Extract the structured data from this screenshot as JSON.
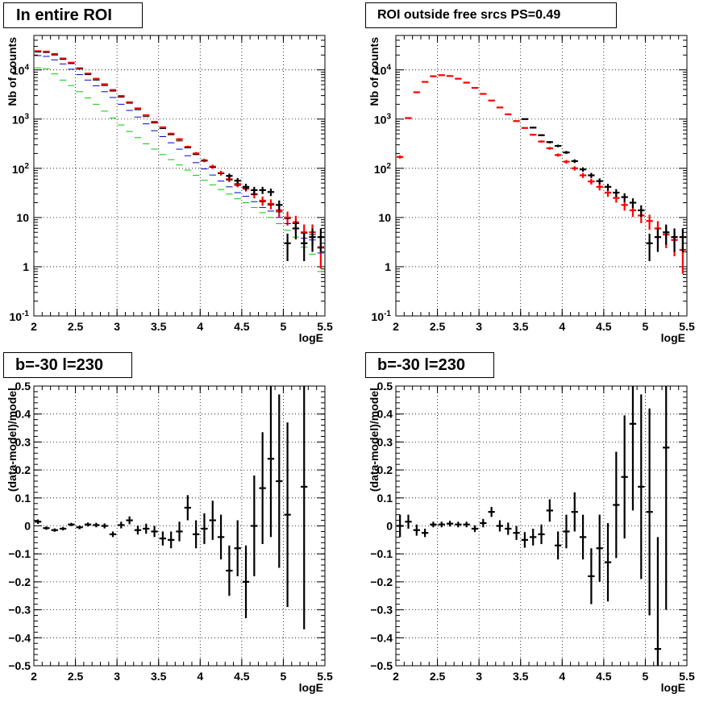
{
  "colors": {
    "data": "#000000",
    "model": "#ff0000",
    "component_blue": "#0000cc",
    "component_green": "#00cc00"
  },
  "panels": {
    "top_left": {
      "title": "In entire ROI"
    },
    "top_right": {
      "title": "ROI outside free srcs PS=0.49"
    },
    "bottom_left": {
      "title": "b=-30 l=230"
    },
    "bottom_right": {
      "title": "b=-30 l=230"
    }
  },
  "chart_data": [
    {
      "type": "scatter",
      "title": "In entire ROI",
      "xlabel": "logE",
      "ylabel": "Nb of counts",
      "xlim": [
        2,
        5.5
      ],
      "ylim": [
        0.1,
        50000
      ],
      "yscale": "log",
      "grid": true,
      "x_ticks": [
        "2",
        "2.5",
        "3",
        "3.5",
        "4",
        "4.5",
        "5",
        "5.5"
      ],
      "y_ticks": [
        "10^-1",
        "1",
        "10",
        "10^2",
        "10^3",
        "10^4"
      ],
      "x": [
        2.05,
        2.15,
        2.25,
        2.35,
        2.45,
        2.55,
        2.65,
        2.75,
        2.85,
        2.95,
        3.05,
        3.15,
        3.25,
        3.35,
        3.45,
        3.55,
        3.65,
        3.75,
        3.85,
        3.95,
        4.05,
        4.15,
        4.25,
        4.35,
        4.45,
        4.55,
        4.65,
        4.75,
        4.85,
        4.95,
        5.05,
        5.15,
        5.25,
        5.35,
        5.45
      ],
      "series": [
        {
          "values": [
            24000,
            23500,
            21000,
            17000,
            14000,
            10800,
            8400,
            6600,
            5100,
            3900,
            2950,
            2200,
            1650,
            1200,
            880,
            680,
            505,
            390,
            272,
            200,
            145,
            108,
            80,
            60,
            48,
            40,
            30,
            22,
            19,
            14,
            10,
            8,
            5,
            5,
            2.5
          ]
        },
        {
          "values": [
            23000,
            22500,
            20000,
            16300,
            13400,
            10400,
            8000,
            6200,
            4800,
            3700,
            2800,
            2100,
            1550,
            1120,
            830,
            640,
            480,
            360,
            260,
            190,
            140,
            105,
            78,
            58,
            45,
            38,
            29,
            21,
            18,
            13,
            9.5,
            7.5,
            4.8,
            4.5,
            2.4
          ]
        },
        {
          "values": [
            19500,
            18800,
            16000,
            13200,
            10300,
            8000,
            6200,
            4750,
            3600,
            2750,
            2000,
            1500,
            1100,
            800,
            580,
            440,
            330,
            245,
            180,
            130,
            97,
            73,
            55,
            42,
            32,
            27,
            21,
            16,
            13.5,
            10,
            7.5,
            6,
            3.8,
            3.5,
            1.9
          ]
        },
        {
          "values": [
            11000,
            10500,
            8300,
            6200,
            4800,
            3600,
            2700,
            2000,
            1450,
            1050,
            760,
            560,
            420,
            315,
            245,
            190,
            150,
            117,
            92,
            72,
            57,
            46,
            37,
            30,
            24,
            20,
            16,
            12.5,
            10,
            7.5,
            5.5,
            4,
            2.5,
            1.8,
            0.8
          ]
        },
        {
          "values": [
            null,
            null,
            null,
            null,
            null,
            null,
            null,
            null,
            null,
            null,
            null,
            null,
            null,
            null,
            null,
            null,
            null,
            null,
            null,
            null,
            null,
            null,
            null,
            70,
            56,
            42,
            36,
            36,
            33,
            18,
            3,
            6,
            3,
            4,
            4
          ],
          "errors": [
            null,
            null,
            null,
            null,
            null,
            null,
            null,
            null,
            null,
            null,
            null,
            null,
            null,
            null,
            null,
            null,
            null,
            null,
            null,
            null,
            null,
            null,
            null,
            8,
            7.5,
            6.5,
            6,
            6,
            5.7,
            4.2,
            1.7,
            2.4,
            1.7,
            2,
            2
          ]
        }
      ]
    },
    {
      "type": "scatter",
      "title": "ROI outside free srcs PS=0.49",
      "xlabel": "logE",
      "ylabel": "Nb of counts",
      "xlim": [
        2,
        5.5
      ],
      "ylim": [
        0.1,
        50000
      ],
      "yscale": "log",
      "grid": true,
      "x_ticks": [
        "2",
        "2.5",
        "3",
        "3.5",
        "4",
        "4.5",
        "5",
        "5.5"
      ],
      "y_ticks": [
        "10^-1",
        "1",
        "10",
        "10^2",
        "10^3",
        "10^4"
      ],
      "x": [
        2.05,
        2.15,
        2.25,
        2.35,
        2.45,
        2.55,
        2.65,
        2.75,
        2.85,
        2.95,
        3.05,
        3.15,
        3.25,
        3.35,
        3.45,
        3.55,
        3.65,
        3.75,
        3.85,
        3.95,
        4.05,
        4.15,
        4.25,
        4.35,
        4.45,
        4.55,
        4.65,
        4.75,
        4.85,
        4.95,
        5.05,
        5.15,
        5.25,
        5.35,
        5.45
      ],
      "series": [
        {
          "values": [
            170,
            1050,
            3500,
            5700,
            7400,
            7800,
            7500,
            6600,
            5500,
            4300,
            3250,
            2380,
            1720,
            1250,
            910,
            660,
            480,
            350,
            255,
            186,
            136,
            100,
            72,
            54,
            42,
            32,
            25,
            18,
            14,
            11,
            8.5,
            6,
            4.5,
            3.5,
            2.2
          ]
        },
        {
          "values": [
            null,
            null,
            null,
            null,
            null,
            null,
            null,
            null,
            null,
            null,
            null,
            null,
            null,
            null,
            null,
            1000,
            670,
            470,
            340,
            285,
            210,
            140,
            95,
            72,
            55,
            42,
            32,
            26,
            20,
            14,
            3,
            4,
            5,
            4,
            4
          ],
          "errors": [
            null,
            null,
            null,
            null,
            null,
            null,
            null,
            null,
            null,
            null,
            null,
            null,
            null,
            null,
            null,
            32,
            26,
            22,
            18,
            17,
            14.5,
            12,
            10,
            8.5,
            7.4,
            6.5,
            5.7,
            5.1,
            4.5,
            3.7,
            1.7,
            2,
            2.2,
            2,
            2
          ]
        }
      ]
    },
    {
      "type": "scatter",
      "title": "b=-30 l=230",
      "xlabel": "logE",
      "ylabel": "(data-model)/model",
      "xlim": [
        2,
        5.5
      ],
      "ylim": [
        -0.5,
        0.5
      ],
      "grid": true,
      "x_ticks": [
        "2",
        "2.5",
        "3",
        "3.5",
        "4",
        "4.5",
        "5",
        "5.5"
      ],
      "y_ticks": [
        "-0.5",
        "-0.4",
        "-0.3",
        "-0.2",
        "-0.1",
        "0",
        "0.1",
        "0.2",
        "0.3",
        "0.4",
        "0.5"
      ],
      "series": [
        {
          "x": [
            2.05,
            2.15,
            2.25,
            2.35,
            2.45,
            2.55,
            2.65,
            2.75,
            2.85,
            2.95,
            3.05,
            3.15,
            3.25,
            3.35,
            3.45,
            3.55,
            3.65,
            3.75,
            3.85,
            3.95,
            4.05,
            4.15,
            4.25,
            4.35,
            4.45,
            4.55,
            4.65,
            4.75,
            4.85,
            4.95,
            5.05,
            5.25
          ],
          "values": [
            0.015,
            -0.008,
            -0.015,
            -0.01,
            0.005,
            -0.005,
            0.005,
            0.003,
            0,
            -0.03,
            0.003,
            0.02,
            -0.015,
            -0.01,
            -0.02,
            -0.045,
            -0.05,
            -0.02,
            0.065,
            -0.03,
            -0.01,
            0.02,
            -0.04,
            -0.16,
            -0.08,
            -0.2,
            0,
            0.135,
            0.24,
            0.16,
            0.04,
            0.14
          ],
          "errors": [
            0.008,
            0.006,
            0.006,
            0.006,
            0.006,
            0.007,
            0.007,
            0.008,
            0.009,
            0.01,
            0.012,
            0.014,
            0.016,
            0.018,
            0.02,
            0.025,
            0.03,
            0.035,
            0.045,
            0.05,
            0.055,
            0.07,
            0.08,
            0.09,
            0.1,
            0.13,
            0.18,
            0.2,
            0.28,
            0.31,
            0.33,
            0.51
          ]
        }
      ]
    },
    {
      "type": "scatter",
      "title": "b=-30 l=230",
      "xlabel": "logE",
      "ylabel": "(data-model)/model",
      "xlim": [
        2,
        5.5
      ],
      "ylim": [
        -0.5,
        0.5
      ],
      "grid": true,
      "x_ticks": [
        "2",
        "2.5",
        "3",
        "3.5",
        "4",
        "4.5",
        "5",
        "5.5"
      ],
      "y_ticks": [
        "-0.5",
        "-0.4",
        "-0.3",
        "-0.2",
        "-0.1",
        "0",
        "0.1",
        "0.2",
        "0.3",
        "0.4",
        "0.5"
      ],
      "series": [
        {
          "x": [
            2.05,
            2.15,
            2.25,
            2.35,
            2.45,
            2.55,
            2.65,
            2.75,
            2.85,
            2.95,
            3.05,
            3.15,
            3.25,
            3.35,
            3.45,
            3.55,
            3.65,
            3.75,
            3.85,
            3.95,
            4.05,
            4.15,
            4.25,
            4.35,
            4.45,
            4.55,
            4.65,
            4.75,
            4.85,
            4.95,
            5.05,
            5.15,
            5.25
          ],
          "values": [
            0,
            0.015,
            -0.015,
            -0.025,
            0.005,
            0.005,
            0.008,
            0.005,
            0.005,
            -0.01,
            0.01,
            0.05,
            0,
            -0.01,
            -0.025,
            -0.05,
            -0.04,
            -0.03,
            0.055,
            -0.07,
            -0.02,
            0.05,
            -0.04,
            -0.18,
            -0.08,
            -0.13,
            0.075,
            0.175,
            0.365,
            0.14,
            0.05,
            -0.44,
            0.28
          ],
          "errors": [
            0.04,
            0.025,
            0.02,
            0.015,
            0.01,
            0.01,
            0.01,
            0.01,
            0.01,
            0.012,
            0.015,
            0.018,
            0.02,
            0.022,
            0.025,
            0.028,
            0.03,
            0.035,
            0.04,
            0.05,
            0.06,
            0.07,
            0.08,
            0.1,
            0.12,
            0.14,
            0.19,
            0.22,
            0.31,
            0.33,
            0.37,
            0.4,
            0.58
          ]
        }
      ]
    }
  ]
}
